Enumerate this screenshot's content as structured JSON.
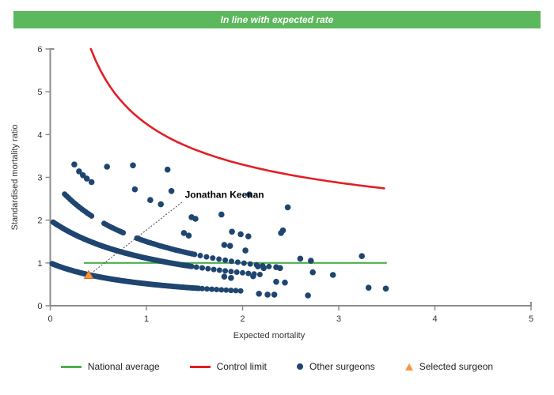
{
  "banner": {
    "text": "In line with expected rate",
    "bg_color": "#5cb85c",
    "text_color": "#ffffff"
  },
  "chart_data": {
    "type": "scatter",
    "title": "",
    "xlabel": "Expected mortality",
    "ylabel": "Standardised mortality ratio",
    "xlim": [
      0,
      5
    ],
    "ylim": [
      0,
      6
    ],
    "x_ticks": [
      0,
      1,
      2,
      3,
      4,
      5
    ],
    "y_ticks": [
      0,
      1,
      2,
      3,
      4,
      5,
      6
    ],
    "grid": false,
    "axis_color": "#8c8c8c",
    "national_average": {
      "label": "National average",
      "y": 1,
      "x_from": 0.35,
      "x_to": 3.5,
      "color": "#4caf50"
    },
    "control_limit": {
      "label": "Control limit",
      "formula": "y = 1 + 3.25/sqrt(x)",
      "k": 3.25,
      "offset": 1,
      "x_from": 0.4225,
      "x_to": 3.5,
      "color": "#e31e25"
    },
    "surgeon_bands": {
      "description": "dense arcs of overlapping surgeon points, y = a/(b + c*x), segments are [x_from, x_to, x_step]",
      "color": "#1f4571",
      "point_radius": 3.5,
      "bands": [
        {
          "a": 1.0,
          "b": 1.0,
          "c": 0.95,
          "segments": [
            [
              0.02,
              1.55,
              0.012
            ],
            [
              1.58,
              1.98,
              0.05
            ]
          ]
        },
        {
          "a": 2.0,
          "b": 1.0,
          "c": 0.8,
          "segments": [
            [
              0.03,
              1.48,
              0.012
            ],
            [
              1.52,
              2.2,
              0.06
            ]
          ]
        },
        {
          "a": 3.0,
          "b": 1.0,
          "c": 1.0,
          "segments": [
            [
              0.15,
              0.44,
              0.02
            ],
            [
              0.56,
              0.76,
              0.022
            ],
            [
              0.9,
              1.5,
              0.024
            ],
            [
              1.56,
              2.28,
              0.065
            ]
          ]
        }
      ]
    },
    "other_surgeons": {
      "label": "Other surgeons",
      "color": "#1f4571",
      "point_radius": 3.8,
      "points": [
        [
          0.25,
          3.3
        ],
        [
          0.3,
          3.14
        ],
        [
          0.34,
          3.05
        ],
        [
          0.38,
          2.97
        ],
        [
          0.43,
          2.89
        ],
        [
          0.59,
          3.25
        ],
        [
          0.86,
          3.28
        ],
        [
          0.88,
          2.72
        ],
        [
          1.04,
          2.47
        ],
        [
          1.15,
          2.37
        ],
        [
          1.22,
          3.18
        ],
        [
          1.26,
          2.68
        ],
        [
          1.47,
          2.07
        ],
        [
          1.51,
          2.03
        ],
        [
          1.78,
          2.13
        ],
        [
          2.07,
          2.6
        ],
        [
          2.47,
          2.3
        ],
        [
          2.42,
          1.76
        ],
        [
          1.39,
          1.7
        ],
        [
          1.44,
          1.64
        ],
        [
          1.89,
          1.73
        ],
        [
          1.98,
          1.67
        ],
        [
          2.06,
          1.62
        ],
        [
          2.4,
          1.7
        ],
        [
          1.81,
          1.42
        ],
        [
          1.87,
          1.4
        ],
        [
          2.03,
          1.29
        ],
        [
          2.6,
          1.1
        ],
        [
          2.71,
          1.05
        ],
        [
          3.24,
          1.16
        ],
        [
          2.16,
          0.92
        ],
        [
          2.22,
          0.88
        ],
        [
          2.35,
          0.9
        ],
        [
          2.39,
          0.88
        ],
        [
          1.81,
          0.68
        ],
        [
          1.88,
          0.65
        ],
        [
          2.11,
          0.69
        ],
        [
          2.35,
          0.56
        ],
        [
          2.44,
          0.54
        ],
        [
          2.73,
          0.78
        ],
        [
          2.94,
          0.72
        ],
        [
          3.31,
          0.42
        ],
        [
          3.49,
          0.4
        ],
        [
          2.17,
          0.28
        ],
        [
          2.26,
          0.26
        ],
        [
          2.33,
          0.26
        ],
        [
          2.68,
          0.24
        ]
      ]
    },
    "selected_surgeon": {
      "label": "Selected surgeon",
      "name": "Jonathan Keenan",
      "x": 0.4,
      "y": 0.72,
      "color": "#f79640",
      "edge_color": "#d07020"
    },
    "annotation": {
      "text": "Jonathan Keenan",
      "text_x": 1.4,
      "text_y": 2.52,
      "line_from": [
        0.45,
        0.8
      ],
      "line_to": [
        1.37,
        2.42
      ],
      "line_color": "#444444"
    }
  },
  "legend": {
    "items": [
      {
        "label": "National average",
        "swatch": "line",
        "color": "#4caf50"
      },
      {
        "label": "Control limit",
        "swatch": "line",
        "color": "#e31e25"
      },
      {
        "label": "Other surgeons",
        "swatch": "dot",
        "color": "#1f4571"
      },
      {
        "label": "Selected surgeon",
        "swatch": "triangle",
        "color": "#f79640"
      }
    ]
  }
}
